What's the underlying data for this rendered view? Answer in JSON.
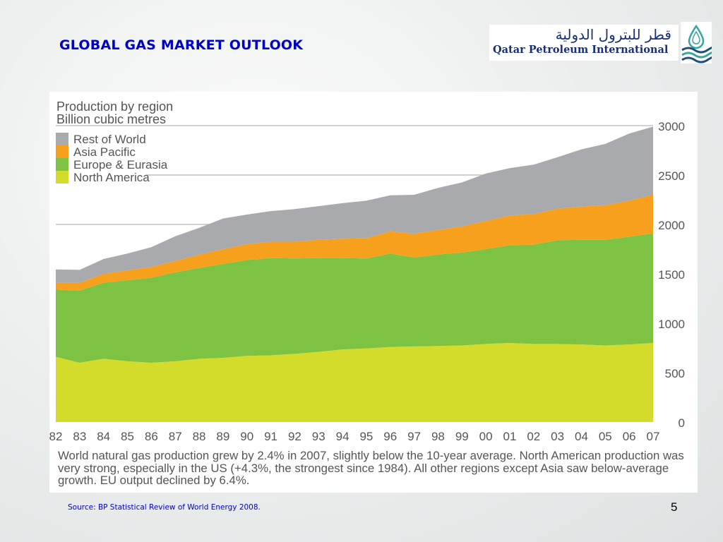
{
  "slide": {
    "title": "GLOBAL GAS MARKET OUTLOOK",
    "source": "Source: BP Statistical Review of World Energy 2008.",
    "page_number": "5"
  },
  "logo": {
    "arabic_text": "قطر للبترول الدولية",
    "english_text": "Qatar Petroleum International"
  },
  "colors": {
    "rest_of_world": "#a9aaad",
    "asia_pacific": "#f6a01d",
    "europe_eurasia": "#7dc242",
    "north_america": "#d3dc2b",
    "title_blue": "#0000c8",
    "axis_text": "#555555"
  },
  "chart_data": {
    "type": "area",
    "stacked": true,
    "title": "Production by region",
    "subtitle": "Billion cubic metres",
    "x": [
      "82",
      "83",
      "84",
      "85",
      "86",
      "87",
      "88",
      "89",
      "90",
      "91",
      "92",
      "93",
      "94",
      "95",
      "96",
      "97",
      "98",
      "99",
      "00",
      "01",
      "02",
      "03",
      "04",
      "05",
      "06",
      "07"
    ],
    "series": [
      {
        "name": "North America",
        "color": "#d3dc2b",
        "values": [
          660,
          600,
          640,
          615,
          600,
          615,
          640,
          650,
          670,
          675,
          690,
          710,
          735,
          745,
          760,
          765,
          770,
          775,
          790,
          800,
          790,
          790,
          785,
          775,
          785,
          800
        ]
      },
      {
        "name": "Europe & Eurasia",
        "color": "#7dc242",
        "values": [
          680,
          730,
          770,
          820,
          860,
          900,
          920,
          950,
          970,
          985,
          965,
          950,
          925,
          910,
          945,
          900,
          925,
          940,
          960,
          990,
          1005,
          1050,
          1060,
          1070,
          1090,
          1110
        ]
      },
      {
        "name": "Asia Pacific",
        "color": "#f6a01d",
        "values": [
          70,
          80,
          90,
          100,
          110,
          115,
          135,
          150,
          160,
          165,
          170,
          185,
          195,
          205,
          225,
          240,
          250,
          265,
          285,
          300,
          310,
          320,
          335,
          350,
          365,
          390
        ]
      },
      {
        "name": "Rest of World",
        "color": "#a9aaad",
        "values": [
          135,
          130,
          150,
          170,
          200,
          250,
          270,
          310,
          300,
          310,
          330,
          340,
          360,
          380,
          365,
          395,
          425,
          445,
          480,
          480,
          500,
          520,
          580,
          620,
          680,
          690
        ]
      }
    ],
    "legend_order": [
      "Rest of World",
      "Asia Pacific",
      "Europe & Eurasia",
      "North America"
    ],
    "ylim": [
      0,
      3000
    ],
    "yticks": [
      0,
      500,
      1000,
      1500,
      2000,
      2500,
      3000
    ],
    "ytick_labels": [
      "0",
      "500",
      "1000",
      "1500",
      "2000",
      "2500",
      "3000"
    ],
    "y_axis_side": "right",
    "grid": true,
    "legend_position": "top-left",
    "caption": "World natural gas production grew by 2.4% in 2007, slightly below the 10-year average. North American production was very strong, especially in the US (+4.3%, the strongest since 1984). All other regions except Asia saw below-average growth. EU output declined by 6.4%."
  }
}
